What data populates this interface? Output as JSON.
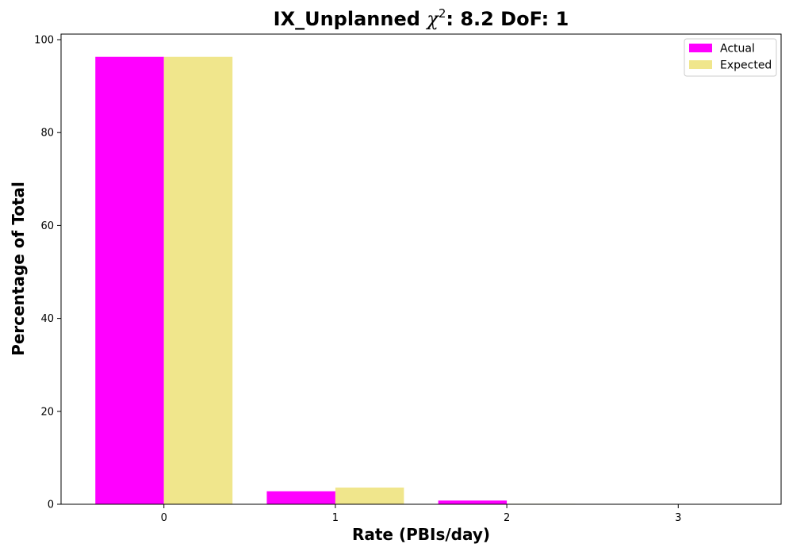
{
  "chart_data": {
    "type": "bar",
    "title_prefix": "IX_Unplanned ",
    "title_chi": "χ",
    "title_sup": "2",
    "title_suffix": ": 8.2 DoF: 1",
    "xlabel": "Rate (PBIs/day)",
    "ylabel": "Percentage of Total",
    "categories": [
      "0",
      "1",
      "2",
      "3"
    ],
    "x": [
      0,
      1,
      2,
      3
    ],
    "xlim": [
      -0.6,
      3.6
    ],
    "ylim": [
      0,
      101.2
    ],
    "yticks": [
      0,
      20,
      40,
      60,
      80,
      100
    ],
    "series": [
      {
        "name": "Actual",
        "color": "#ff00ff",
        "values": [
          96.3,
          2.8,
          0.8,
          0.0
        ]
      },
      {
        "name": "Expected",
        "color": "#f0e68c",
        "values": [
          96.3,
          3.6,
          0.1,
          0.0
        ]
      }
    ],
    "bar_width": 0.4,
    "grid": false,
    "legend_position": "top-right"
  }
}
